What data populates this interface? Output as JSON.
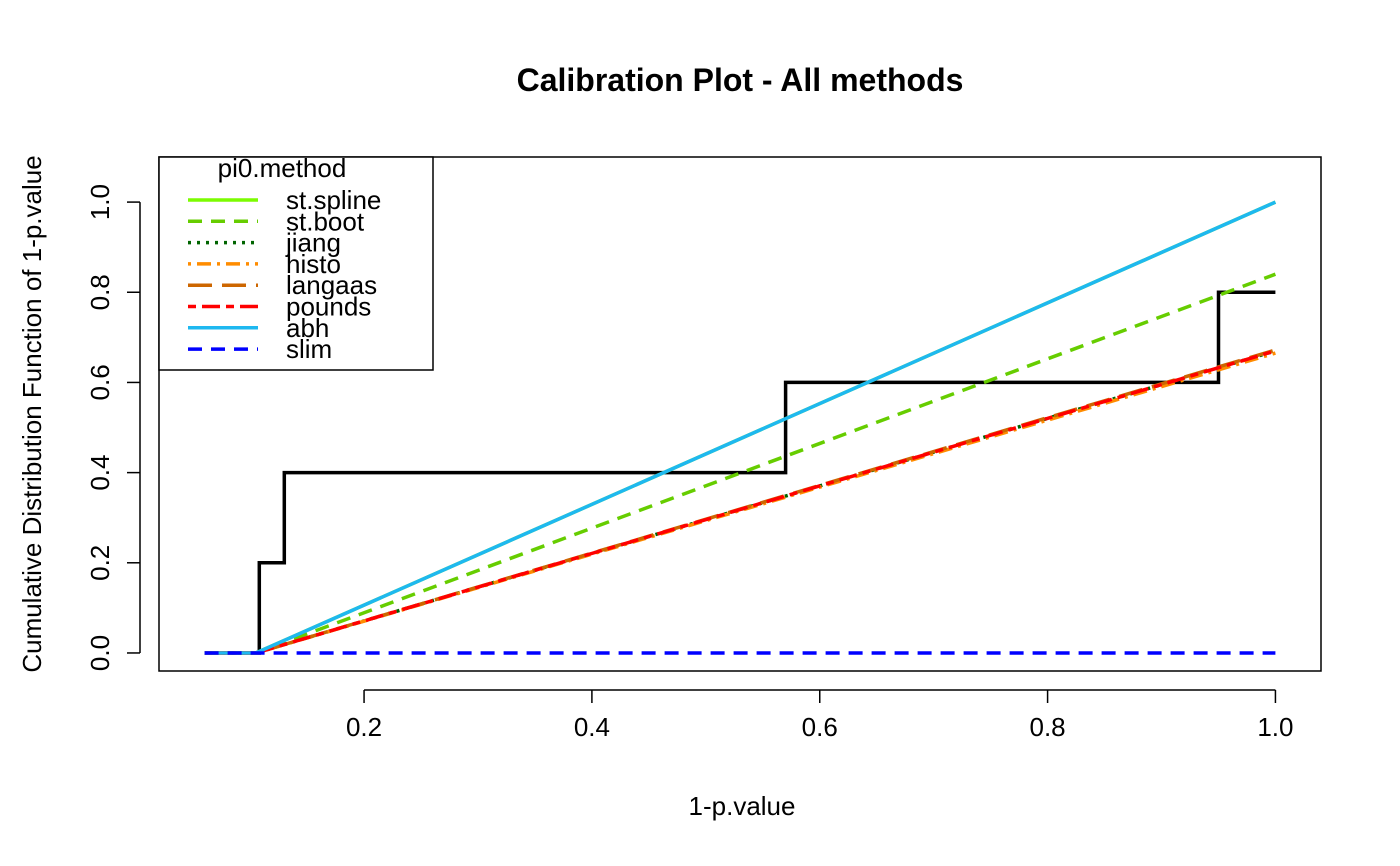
{
  "chart_data": {
    "type": "line",
    "title": "Calibration Plot - All methods",
    "xlabel": "1-p.value",
    "ylabel": "Cumulative Distribution Function of 1-p.value",
    "xlim": [
      0.02,
      1.04
    ],
    "ylim": [
      -0.04,
      1.1
    ],
    "x_ticks": [
      0.2,
      0.4,
      0.6,
      0.8,
      1.0
    ],
    "x_tick_labels": [
      "0.2",
      "0.4",
      "0.6",
      "0.8",
      "1.0"
    ],
    "y_ticks": [
      0.0,
      0.2,
      0.4,
      0.6,
      0.8,
      1.0
    ],
    "y_tick_labels": [
      "0.0",
      "0.2",
      "0.4",
      "0.6",
      "0.8",
      "1.0"
    ],
    "grid": false,
    "legend": {
      "title": "pi0.method",
      "position": "top-left"
    },
    "ecdf": {
      "color": "#000000",
      "points": [
        [
          0.06,
          0.0
        ],
        [
          0.108,
          0.0
        ],
        [
          0.108,
          0.2
        ],
        [
          0.13,
          0.2
        ],
        [
          0.13,
          0.4
        ],
        [
          0.57,
          0.4
        ],
        [
          0.57,
          0.6
        ],
        [
          0.95,
          0.6
        ],
        [
          0.95,
          0.8
        ],
        [
          1.0,
          0.8
        ]
      ]
    },
    "series": [
      {
        "name": "st.spline",
        "color": "#7CFC00",
        "dash": "solid",
        "x": [
          0.06,
          0.105,
          1.0
        ],
        "y": [
          0.0,
          0.0,
          1.0
        ]
      },
      {
        "name": "st.boot",
        "color": "#66CD00",
        "dash": "dashed",
        "x": [
          0.06,
          0.105,
          1.0
        ],
        "y": [
          0.0,
          0.0,
          0.84
        ]
      },
      {
        "name": "jiang",
        "color": "#006400",
        "dash": "dotted",
        "x": [
          0.06,
          0.105,
          1.0
        ],
        "y": [
          0.0,
          0.0,
          0.67
        ]
      },
      {
        "name": "histo",
        "color": "#FF8C00",
        "dash": "dotdash",
        "x": [
          0.06,
          0.105,
          1.0
        ],
        "y": [
          0.0,
          0.0,
          0.665
        ]
      },
      {
        "name": "langaas",
        "color": "#CD6600",
        "dash": "longdash",
        "x": [
          0.06,
          0.105,
          1.0
        ],
        "y": [
          0.0,
          0.0,
          0.672
        ]
      },
      {
        "name": "pounds",
        "color": "#FF0000",
        "dash": "twodash",
        "x": [
          0.06,
          0.105,
          1.0
        ],
        "y": [
          0.0,
          0.0,
          0.67
        ]
      },
      {
        "name": "abh",
        "color": "#1EB8F0",
        "dash": "solid",
        "x": [
          0.06,
          0.105,
          1.0
        ],
        "y": [
          0.0,
          0.0,
          1.0
        ]
      },
      {
        "name": "slim",
        "color": "#0000FF",
        "dash": "dashed",
        "x": [
          0.06,
          1.0
        ],
        "y": [
          0.0,
          0.0
        ]
      }
    ]
  }
}
